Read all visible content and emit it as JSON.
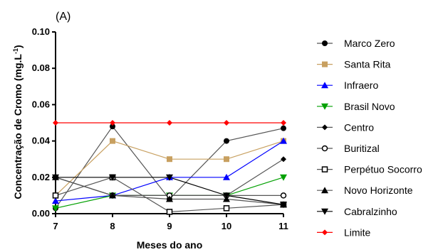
{
  "chart_data": {
    "type": "line",
    "panel_label": "(A)",
    "xlabel": "Meses do ano",
    "ylabel_main": "Concentração de Cromo (mg.L",
    "ylabel_sup": "-1",
    "ylabel_close": ")",
    "x": [
      7,
      8,
      9,
      10,
      11
    ],
    "x_tick_labels": [
      "7",
      "8",
      "9",
      "10",
      "11"
    ],
    "ylim": [
      0,
      0.1
    ],
    "y_ticks": [
      0,
      0.02,
      0.04,
      0.06,
      0.08,
      0.1
    ],
    "y_tick_labels": [
      "0.00",
      "0.02",
      "0.04",
      "0.06",
      "0.08",
      "0.10"
    ],
    "legend_position": "right",
    "series": [
      {
        "name": "Marco Zero",
        "values": [
          0.003,
          0.048,
          0.008,
          0.04,
          0.047
        ],
        "color": "#000000",
        "line": "#555555",
        "marker": "circle"
      },
      {
        "name": "Santa Rita",
        "values": [
          0.01,
          0.04,
          0.03,
          0.03,
          0.04
        ],
        "color": "#C8A060",
        "line": "#C8A060",
        "marker": "square"
      },
      {
        "name": "Infraero",
        "values": [
          0.007,
          0.01,
          0.02,
          0.02,
          0.04
        ],
        "color": "#0000FF",
        "line": "#0000FF",
        "marker": "triangle-up"
      },
      {
        "name": "Brasil Novo",
        "values": [
          0.003,
          0.01,
          0.01,
          0.01,
          0.02
        ],
        "color": "#00A000",
        "line": "#00A000",
        "marker": "triangle-down"
      },
      {
        "name": "Centro",
        "values": [
          0.02,
          0.01,
          0.01,
          0.01,
          0.03
        ],
        "color": "#000000",
        "line": "#555555",
        "marker": "diamond"
      },
      {
        "name": "Buritizal",
        "values": [
          0.02,
          0.01,
          0.01,
          0.01,
          0.01
        ],
        "color": "#000000",
        "line": "#555555",
        "marker": "circle-open"
      },
      {
        "name": "Perpétuo Socorro",
        "values": [
          0.01,
          0.02,
          0.001,
          0.003,
          0.005
        ],
        "color": "#000000",
        "line": "#555555",
        "marker": "square-open"
      },
      {
        "name": "Novo Horizonte",
        "values": [
          0.02,
          0.01,
          0.008,
          0.008,
          0.005
        ],
        "color": "#000000",
        "line": "#555555",
        "marker": "triangle-up"
      },
      {
        "name": "Cabralzinho",
        "values": [
          0.02,
          0.02,
          0.02,
          0.01,
          0.005
        ],
        "color": "#000000",
        "line": "#000000",
        "marker": "triangle-down"
      },
      {
        "name": "Limite",
        "values": [
          0.05,
          0.05,
          0.05,
          0.05,
          0.05
        ],
        "color": "#FF0000",
        "line": "#FF0000",
        "marker": "diamond"
      }
    ]
  }
}
